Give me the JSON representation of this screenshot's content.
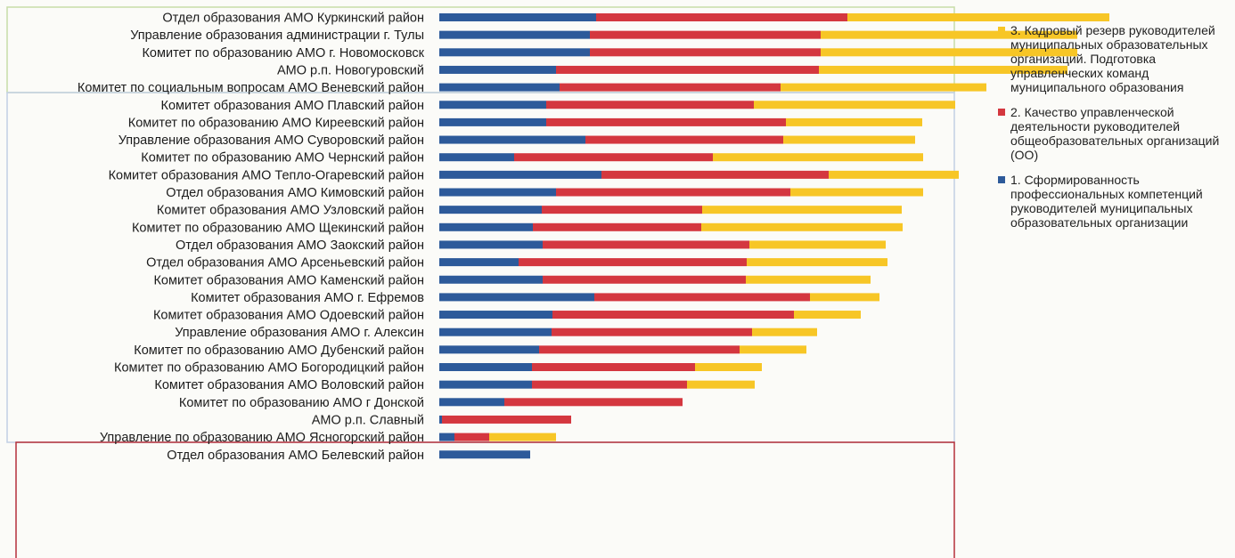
{
  "chart_data": {
    "type": "bar",
    "orientation": "horizontal",
    "stacked": true,
    "title": "",
    "xlabel": "",
    "ylabel": "",
    "xlim": [
      0,
      1000
    ],
    "grid": false,
    "legend_position": "right",
    "categories": [
      "Отдел образования АМО Куркинский район",
      "Управление образования администрации г. Тулы",
      "Комитет по образованию АМО г. Новомосковск",
      "АМО р.п. Новогуровский",
      "Комитет по социальным вопросам АМО Веневский район",
      "Комитет образования АМО Плавский район",
      "Комитет по образованию АМО Киреевский район",
      "Управление образования АМО Суворовский район",
      "Комитет по образованию АМО Чернский район",
      "Комитет образования АМО Тепло-Огаревский район",
      "Отдел образования АМО Кимовский район",
      "Комитет образования АМО Узловский район",
      "Комитет по образованию АМО Щекинский район",
      "Отдел образования АМО Заокский район",
      "Отдел образования АМО Арсеньевский район",
      "Комитет образования АМО Каменский район",
      "Комитет образования АМО г. Ефремов",
      "Комитет образования АМО Одоевский район",
      "Управление образования АМО г. Алексин",
      "Комитет по образованию АМО Дубенский район",
      "Комитет по образованию АМО Богородицкий район",
      "Комитет образования АМО Воловский район",
      "Комитет по образованию АМО г Донской",
      "АМО р.п. Славный",
      "Управление по образованию АМО Ясногорский район",
      "Отдел образования АМО Белевский район"
    ],
    "series": [
      {
        "name": "1. Сформированность профессиональных компетенций руководителей муниципальных образовательных организации",
        "color": "#2d5a9a",
        "values": [
          176,
          169,
          169,
          131,
          135,
          120,
          120,
          164,
          84,
          182,
          131,
          115,
          105,
          116,
          89,
          116,
          174,
          127,
          126,
          112,
          104,
          104,
          73,
          3,
          17,
          102
        ]
      },
      {
        "name": "2. Качество управленческой деятельности руководителей общеобразовательных организаций (ОО)",
        "color": "#d4373f",
        "values": [
          282,
          259,
          259,
          295,
          248,
          233,
          269,
          222,
          223,
          255,
          263,
          180,
          189,
          232,
          256,
          228,
          242,
          271,
          225,
          225,
          183,
          174,
          200,
          145,
          39,
          0
        ]
      },
      {
        "name": "3. Кадровый резерв руководителей муниципальных образовательных организаций. Подготовка управленческих команд муниципального образования",
        "color": "#f7c626",
        "values": [
          294,
          288,
          288,
          279,
          231,
          226,
          153,
          148,
          236,
          146,
          149,
          224,
          226,
          153,
          158,
          140,
          78,
          75,
          73,
          75,
          75,
          76,
          0,
          0,
          75,
          0
        ]
      }
    ]
  },
  "colors": {
    "series1": "#2d5a9a",
    "series2": "#d4373f",
    "series3": "#f7c626",
    "frame_green": "#c7dca8",
    "frame_blue": "#c2d0e4",
    "frame_red": "#b5303a"
  },
  "legend": {
    "items": [
      {
        "swatch_color": "#f7c626",
        "label": "3. Кадровый резерв руководителей муниципальных образовательных организаций. Подготовка управленческих команд муниципального образования"
      },
      {
        "swatch_color": "#d4373f",
        "label": "2. Качество управленческой деятельности руководителей общеобразовательных организаций (ОО)"
      },
      {
        "swatch_color": "#2d5a9a",
        "label": "1. Сформированность профессиональных компетенций руководителей муниципальных образовательных организации"
      }
    ]
  }
}
